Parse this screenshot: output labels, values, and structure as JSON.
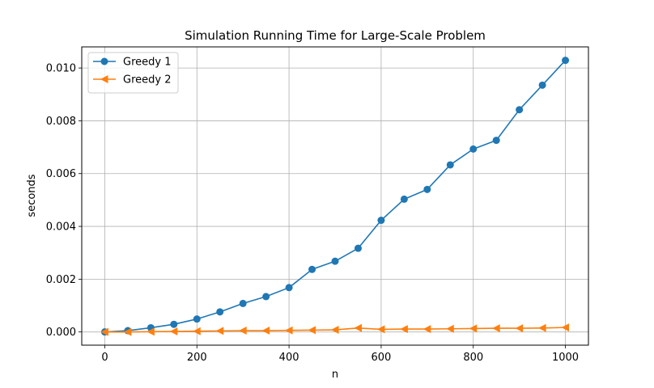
{
  "chart_data": {
    "type": "line",
    "title": "Simulation Running Time for Large-Scale Problem",
    "xlabel": "n",
    "ylabel": "seconds",
    "xlim": [
      -50,
      1050
    ],
    "ylim": [
      -0.0005,
      0.0108
    ],
    "xticks": [
      0,
      200,
      400,
      600,
      800,
      1000
    ],
    "xtick_labels": [
      "0",
      "200",
      "400",
      "600",
      "800",
      "1000"
    ],
    "yticks": [
      0.0,
      0.002,
      0.004,
      0.006,
      0.008,
      0.01
    ],
    "ytick_labels": [
      "0.000",
      "0.002",
      "0.004",
      "0.006",
      "0.008",
      "0.010"
    ],
    "grid": true,
    "legend_position": "top-left",
    "x": [
      0,
      50,
      100,
      150,
      200,
      250,
      300,
      350,
      400,
      450,
      500,
      550,
      600,
      650,
      700,
      750,
      800,
      850,
      900,
      950,
      1000
    ],
    "series": [
      {
        "name": "Greedy 1",
        "color": "#1f77b4",
        "marker": "circle",
        "values": [
          0.0,
          5e-05,
          0.00016,
          0.00029,
          0.00049,
          0.00076,
          0.00108,
          0.00134,
          0.00168,
          0.00237,
          0.00268,
          0.00317,
          0.00423,
          0.00503,
          0.0054,
          0.00633,
          0.00693,
          0.00726,
          0.00842,
          0.00935,
          0.01029
        ]
      },
      {
        "name": "Greedy 2",
        "color": "#ff7f0e",
        "marker": "triangle-left",
        "values": [
          0.0,
          0.0,
          1e-05,
          2e-05,
          3e-05,
          4e-05,
          5e-05,
          5e-05,
          6e-05,
          7e-05,
          8e-05,
          0.00015,
          0.0001,
          0.00011,
          0.00011,
          0.00012,
          0.00013,
          0.00014,
          0.00014,
          0.00015,
          0.00017
        ]
      }
    ]
  }
}
